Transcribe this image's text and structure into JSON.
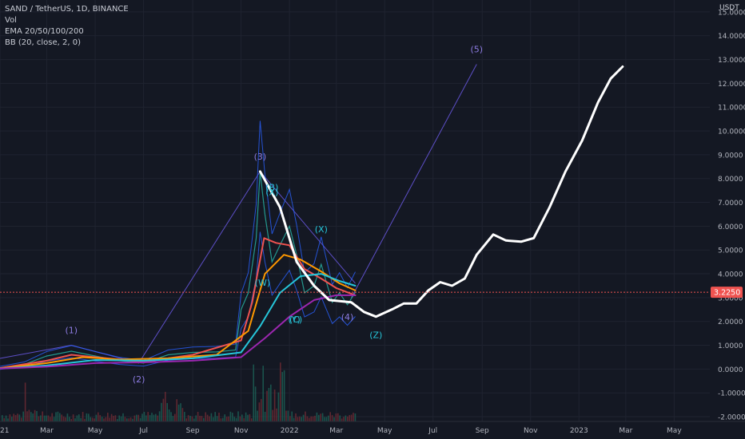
{
  "header": {
    "symbol": "SAND / TetherUS, 1D, BINANCE",
    "indicators": [
      "Vol",
      "EMA 20/50/100/200",
      "BB (20, close, 2, 0)"
    ],
    "unit": "USDT"
  },
  "last_price": "3.2250",
  "colors": {
    "background": "#141823",
    "price_line": "#ef5350",
    "projection": "#ffffff",
    "wave_label": "#8c7be0",
    "corrective_label": "#26c6da",
    "ema20": "#ef5350",
    "ema50": "#ff9800",
    "ema100": "#26c6da",
    "ema200": "#9c27b0",
    "bollinger": "#2962ff",
    "trend_line": "#5d4fc7"
  },
  "chart_data": {
    "type": "line",
    "title": "SAND / TetherUS, 1D, BINANCE",
    "ylim": [
      -2.2,
      15.5
    ],
    "yticks": [
      -2,
      -1,
      0,
      1,
      2,
      3,
      4,
      5,
      6,
      7,
      8,
      9,
      10,
      11,
      12,
      13,
      14,
      15
    ],
    "ytick_labels": [
      "-2.0000",
      "-1.0000",
      "0.0000",
      "1.0000",
      "2.0000",
      "3.0000",
      "4.0000",
      "5.0000",
      "6.0000",
      "7.0000",
      "8.0000",
      "9.0000",
      "10.0000",
      "11.0000",
      "12.0000",
      "13.0000",
      "14.0000",
      "15.0000"
    ],
    "xlim": [
      "2021-01-01",
      "2023-06-15"
    ],
    "xticks": [
      "2021-01-01",
      "2021-03-01",
      "2021-05-01",
      "2021-07-01",
      "2021-09-01",
      "2021-11-01",
      "2022-01-01",
      "2022-03-01",
      "2022-05-01",
      "2022-07-01",
      "2022-09-01",
      "2022-11-01",
      "2023-01-01",
      "2023-03-01",
      "2023-05-01"
    ],
    "xtick_labels": [
      "2021",
      "Mar",
      "May",
      "Jul",
      "Sep",
      "Nov",
      "2022",
      "Mar",
      "May",
      "Jul",
      "Sep",
      "Nov",
      "2023",
      "Mar",
      "May"
    ],
    "price": [
      {
        "x": "2021-01-01",
        "y": 0.05
      },
      {
        "x": "2021-02-01",
        "y": 0.2
      },
      {
        "x": "2021-03-01",
        "y": 0.55
      },
      {
        "x": "2021-04-01",
        "y": 0.75
      },
      {
        "x": "2021-05-01",
        "y": 0.55
      },
      {
        "x": "2021-06-01",
        "y": 0.35
      },
      {
        "x": "2021-07-01",
        "y": 0.25
      },
      {
        "x": "2021-08-01",
        "y": 0.6
      },
      {
        "x": "2021-09-01",
        "y": 0.7
      },
      {
        "x": "2021-10-01",
        "y": 0.72
      },
      {
        "x": "2021-10-25",
        "y": 0.8
      },
      {
        "x": "2021-11-01",
        "y": 2.5
      },
      {
        "x": "2021-11-10",
        "y": 3.2
      },
      {
        "x": "2021-11-20",
        "y": 5.5
      },
      {
        "x": "2021-11-25",
        "y": 8.3
      },
      {
        "x": "2021-12-01",
        "y": 6.5
      },
      {
        "x": "2021-12-10",
        "y": 4.5
      },
      {
        "x": "2021-12-20",
        "y": 5.2
      },
      {
        "x": "2022-01-01",
        "y": 6.0
      },
      {
        "x": "2022-01-10",
        "y": 4.8
      },
      {
        "x": "2022-01-20",
        "y": 3.2
      },
      {
        "x": "2022-02-01",
        "y": 3.5
      },
      {
        "x": "2022-02-10",
        "y": 4.4
      },
      {
        "x": "2022-02-24",
        "y": 2.8
      },
      {
        "x": "2022-03-05",
        "y": 3.2
      },
      {
        "x": "2022-03-15",
        "y": 2.7
      },
      {
        "x": "2022-03-25",
        "y": 3.225
      }
    ],
    "series": [
      {
        "name": "EMA 20",
        "color": "#ef5350",
        "points": [
          {
            "x": "2021-01-01",
            "y": 0.04
          },
          {
            "x": "2021-03-01",
            "y": 0.35
          },
          {
            "x": "2021-04-01",
            "y": 0.6
          },
          {
            "x": "2021-05-01",
            "y": 0.5
          },
          {
            "x": "2021-07-01",
            "y": 0.3
          },
          {
            "x": "2021-09-01",
            "y": 0.6
          },
          {
            "x": "2021-11-01",
            "y": 1.2
          },
          {
            "x": "2021-11-15",
            "y": 2.8
          },
          {
            "x": "2021-11-30",
            "y": 5.5
          },
          {
            "x": "2021-12-15",
            "y": 5.3
          },
          {
            "x": "2022-01-01",
            "y": 5.2
          },
          {
            "x": "2022-01-20",
            "y": 4.2
          },
          {
            "x": "2022-02-10",
            "y": 3.8
          },
          {
            "x": "2022-03-01",
            "y": 3.4
          },
          {
            "x": "2022-03-25",
            "y": 3.1
          }
        ]
      },
      {
        "name": "EMA 50",
        "color": "#ff9800",
        "points": [
          {
            "x": "2021-01-01",
            "y": 0.03
          },
          {
            "x": "2021-03-01",
            "y": 0.25
          },
          {
            "x": "2021-04-15",
            "y": 0.5
          },
          {
            "x": "2021-06-01",
            "y": 0.4
          },
          {
            "x": "2021-08-01",
            "y": 0.45
          },
          {
            "x": "2021-10-01",
            "y": 0.6
          },
          {
            "x": "2021-11-10",
            "y": 1.6
          },
          {
            "x": "2021-12-01",
            "y": 4.0
          },
          {
            "x": "2021-12-25",
            "y": 4.8
          },
          {
            "x": "2022-01-15",
            "y": 4.6
          },
          {
            "x": "2022-02-10",
            "y": 4.1
          },
          {
            "x": "2022-03-05",
            "y": 3.6
          },
          {
            "x": "2022-03-25",
            "y": 3.3
          }
        ]
      },
      {
        "name": "EMA 100",
        "color": "#26c6da",
        "points": [
          {
            "x": "2021-01-01",
            "y": 0.02
          },
          {
            "x": "2021-03-01",
            "y": 0.15
          },
          {
            "x": "2021-05-01",
            "y": 0.38
          },
          {
            "x": "2021-07-01",
            "y": 0.35
          },
          {
            "x": "2021-09-01",
            "y": 0.45
          },
          {
            "x": "2021-11-01",
            "y": 0.7
          },
          {
            "x": "2021-11-25",
            "y": 1.8
          },
          {
            "x": "2021-12-20",
            "y": 3.2
          },
          {
            "x": "2022-01-15",
            "y": 3.9
          },
          {
            "x": "2022-02-10",
            "y": 4.0
          },
          {
            "x": "2022-03-05",
            "y": 3.7
          },
          {
            "x": "2022-03-25",
            "y": 3.5
          }
        ]
      },
      {
        "name": "EMA 200",
        "color": "#9c27b0",
        "points": [
          {
            "x": "2021-01-01",
            "y": 0.02
          },
          {
            "x": "2021-03-01",
            "y": 0.1
          },
          {
            "x": "2021-05-01",
            "y": 0.25
          },
          {
            "x": "2021-07-01",
            "y": 0.28
          },
          {
            "x": "2021-09-01",
            "y": 0.35
          },
          {
            "x": "2021-11-01",
            "y": 0.5
          },
          {
            "x": "2021-12-01",
            "y": 1.3
          },
          {
            "x": "2022-01-01",
            "y": 2.2
          },
          {
            "x": "2022-02-01",
            "y": 2.9
          },
          {
            "x": "2022-03-01",
            "y": 3.1
          },
          {
            "x": "2022-03-25",
            "y": 3.1
          }
        ]
      },
      {
        "name": "Projection",
        "color": "#ffffff",
        "points": [
          {
            "x": "2021-11-25",
            "y": 8.3
          },
          {
            "x": "2021-12-20",
            "y": 6.8
          },
          {
            "x": "2022-01-10",
            "y": 4.5
          },
          {
            "x": "2022-02-01",
            "y": 3.5
          },
          {
            "x": "2022-02-20",
            "y": 2.9
          },
          {
            "x": "2022-03-20",
            "y": 2.8
          },
          {
            "x": "2022-04-05",
            "y": 2.4
          },
          {
            "x": "2022-04-20",
            "y": 2.2
          },
          {
            "x": "2022-05-10",
            "y": 2.5
          },
          {
            "x": "2022-05-25",
            "y": 2.75
          },
          {
            "x": "2022-06-10",
            "y": 2.75
          },
          {
            "x": "2022-06-25",
            "y": 3.3
          },
          {
            "x": "2022-07-10",
            "y": 3.65
          },
          {
            "x": "2022-07-25",
            "y": 3.5
          },
          {
            "x": "2022-08-10",
            "y": 3.8
          },
          {
            "x": "2022-08-25",
            "y": 4.8
          },
          {
            "x": "2022-09-15",
            "y": 5.65
          },
          {
            "x": "2022-10-01",
            "y": 5.4
          },
          {
            "x": "2022-10-20",
            "y": 5.35
          },
          {
            "x": "2022-11-05",
            "y": 5.5
          },
          {
            "x": "2022-11-25",
            "y": 6.8
          },
          {
            "x": "2022-12-15",
            "y": 8.3
          },
          {
            "x": "2023-01-05",
            "y": 9.6
          },
          {
            "x": "2023-01-25",
            "y": 11.2
          },
          {
            "x": "2023-02-10",
            "y": 12.2
          },
          {
            "x": "2023-02-25",
            "y": 12.7
          }
        ]
      }
    ],
    "wave_labels": [
      {
        "text": "(1)",
        "x": "2021-04-01",
        "y": 1.5,
        "kind": "impulse"
      },
      {
        "text": "(2)",
        "x": "2021-06-25",
        "y": -0.55,
        "kind": "impulse"
      },
      {
        "text": "(3)",
        "x": "2021-11-25",
        "y": 8.8,
        "kind": "impulse"
      },
      {
        "text": "(4)",
        "x": "2022-03-15",
        "y": 2.05,
        "kind": "impulse"
      },
      {
        "text": "(5)",
        "x": "2022-08-25",
        "y": 13.3,
        "kind": "impulse"
      },
      {
        "text": "(B)",
        "x": "2021-12-10",
        "y": 7.5,
        "kind": "corrective"
      },
      {
        "text": "(X)",
        "x": "2021-12-10",
        "y": 7.3,
        "kind": "corrective"
      },
      {
        "text": "(W)",
        "x": "2021-11-28",
        "y": 3.5,
        "kind": "corrective"
      },
      {
        "text": "(X)",
        "x": "2022-02-10",
        "y": 5.75,
        "kind": "corrective"
      },
      {
        "text": "(Y)",
        "x": "2022-01-07",
        "y": 1.95,
        "kind": "corrective"
      },
      {
        "text": "(C)",
        "x": "2022-01-09",
        "y": 1.95,
        "kind": "corrective"
      },
      {
        "text": "(Z)",
        "x": "2022-04-20",
        "y": 1.3,
        "kind": "corrective"
      }
    ]
  }
}
